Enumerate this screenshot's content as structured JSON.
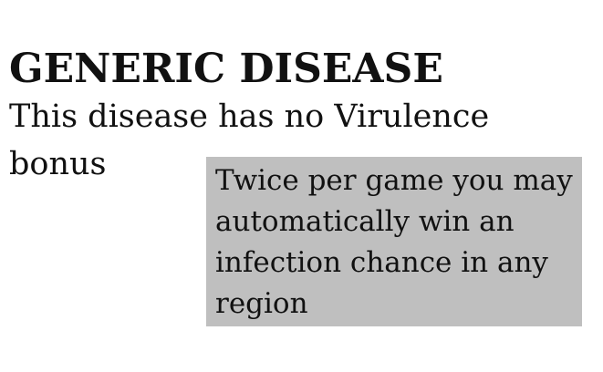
{
  "card": {
    "title": "GENERIC DISEASE",
    "subtitle": "This disease has no Virulence bonus",
    "ability": "Twice per game you may automatically win an infection chance in any region",
    "colors": {
      "background": "#ffffff",
      "ability_box": "#bfbfbf",
      "text": "#111111"
    }
  }
}
